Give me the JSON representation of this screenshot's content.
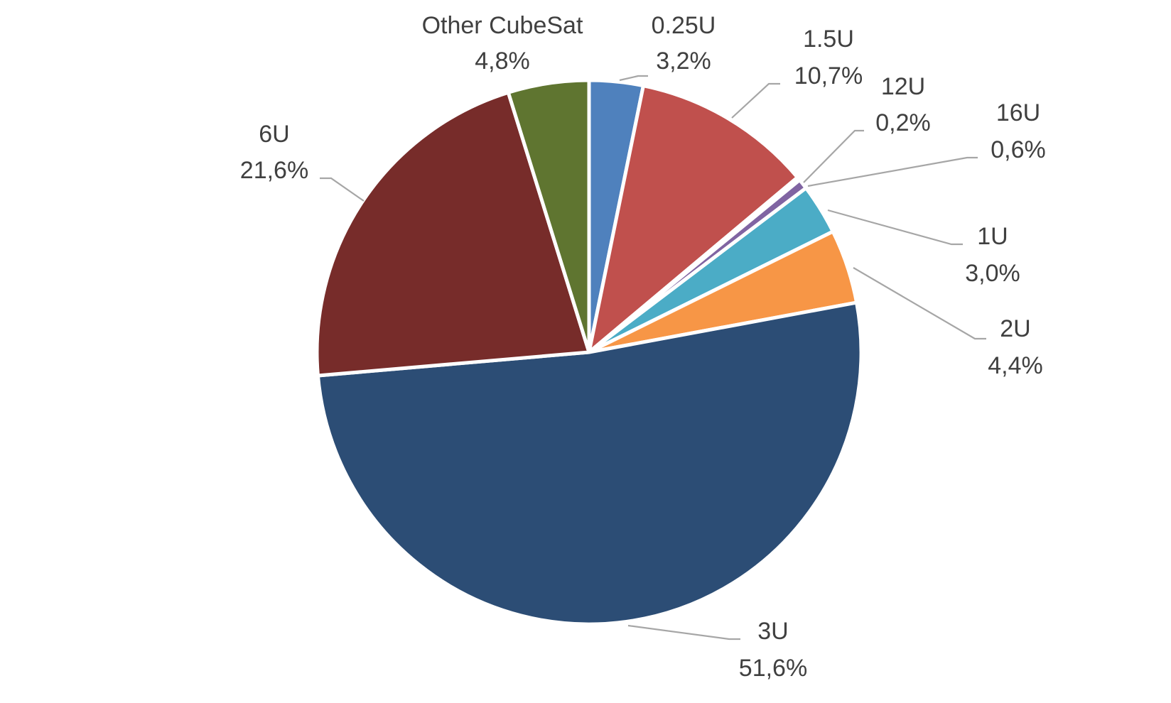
{
  "chart_data": {
    "type": "pie",
    "title": "",
    "start_angle_deg": 0,
    "direction": "clockwise",
    "slices": [
      {
        "name": "0.25U",
        "value": 3.2,
        "label": "3,2%",
        "color": "#4F81BD"
      },
      {
        "name": "1.5U",
        "value": 10.7,
        "label": "10,7%",
        "color": "#C0504D"
      },
      {
        "name": "12U",
        "value": 0.2,
        "label": "0,2%",
        "color": "#9BBB59"
      },
      {
        "name": "16U",
        "value": 0.6,
        "label": "0,6%",
        "color": "#8064A2"
      },
      {
        "name": "1U",
        "value": 3.0,
        "label": "3,0%",
        "color": "#4BACC6"
      },
      {
        "name": "2U",
        "value": 4.4,
        "label": "4,4%",
        "color": "#F79646"
      },
      {
        "name": "3U",
        "value": 51.6,
        "label": "51,6%",
        "color": "#2C4D75"
      },
      {
        "name": "6U",
        "value": 21.6,
        "label": "21,6%",
        "color": "#772C2A"
      },
      {
        "name": "Other CubeSat",
        "value": 4.8,
        "label": "4,8%",
        "color": "#5F7530"
      }
    ]
  }
}
